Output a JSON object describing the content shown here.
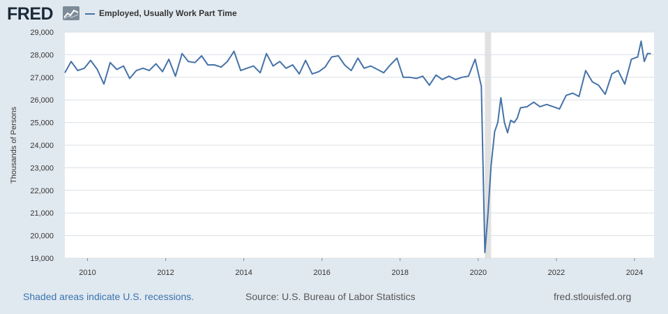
{
  "header": {
    "logo_text": "FRED",
    "logo_icon": "line-chart-icon",
    "series_label": "Employed, Usually Work Part Time"
  },
  "footer": {
    "recession_note": "Shaded areas indicate U.S. recessions.",
    "source": "Source: U.S. Bureau of Labor Statistics",
    "site": "fred.stlouisfed.org"
  },
  "colors": {
    "line": "#4572a7",
    "plot_bg": "#ffffff",
    "page_bg": "#e1e9f0",
    "recession": "#e1e1e1",
    "grid": "#d9dfe6"
  },
  "chart_data": {
    "type": "line",
    "xlabel": "",
    "ylabel": "Thousands of Persons",
    "xlim": [
      2009.42,
      2024.5
    ],
    "ylim": [
      19000,
      29000
    ],
    "x_ticks": [
      2010,
      2012,
      2014,
      2016,
      2018,
      2020,
      2022,
      2024
    ],
    "y_ticks": [
      19000,
      20000,
      21000,
      22000,
      23000,
      24000,
      25000,
      26000,
      27000,
      28000,
      29000
    ],
    "x_tick_labels": [
      "2010",
      "2012",
      "2014",
      "2016",
      "2018",
      "2020",
      "2022",
      "2024"
    ],
    "y_tick_labels": [
      "19,000",
      "20,000",
      "21,000",
      "22,000",
      "23,000",
      "24,000",
      "25,000",
      "26,000",
      "27,000",
      "28,000",
      "29,000"
    ],
    "grid": true,
    "legend": "top-left",
    "recessions": [
      [
        2020.17,
        2020.33
      ]
    ],
    "series": [
      {
        "name": "Employed, Usually Work Part Time",
        "x": [
          2009.42,
          2009.58,
          2009.75,
          2009.92,
          2010.08,
          2010.25,
          2010.42,
          2010.58,
          2010.75,
          2010.92,
          2011.08,
          2011.25,
          2011.42,
          2011.58,
          2011.75,
          2011.92,
          2012.08,
          2012.25,
          2012.42,
          2012.58,
          2012.75,
          2012.92,
          2013.08,
          2013.25,
          2013.42,
          2013.58,
          2013.75,
          2013.92,
          2014.08,
          2014.25,
          2014.42,
          2014.58,
          2014.75,
          2014.92,
          2015.08,
          2015.25,
          2015.42,
          2015.58,
          2015.75,
          2015.92,
          2016.08,
          2016.25,
          2016.42,
          2016.58,
          2016.75,
          2016.92,
          2017.08,
          2017.25,
          2017.42,
          2017.58,
          2017.75,
          2017.92,
          2018.08,
          2018.25,
          2018.42,
          2018.58,
          2018.75,
          2018.92,
          2019.08,
          2019.25,
          2019.42,
          2019.58,
          2019.75,
          2019.92,
          2020.08,
          2020.17,
          2020.25,
          2020.33,
          2020.42,
          2020.5,
          2020.58,
          2020.67,
          2020.75,
          2020.83,
          2020.92,
          2021.0,
          2021.08,
          2021.25,
          2021.42,
          2021.58,
          2021.75,
          2021.92,
          2022.08,
          2022.25,
          2022.42,
          2022.58,
          2022.75,
          2022.92,
          2023.08,
          2023.25,
          2023.42,
          2023.58,
          2023.75,
          2023.92,
          2024.08,
          2024.17,
          2024.25,
          2024.33,
          2024.42
        ],
        "values": [
          27200,
          27700,
          27300,
          27400,
          27750,
          27350,
          26700,
          27650,
          27350,
          27500,
          26950,
          27300,
          27400,
          27300,
          27600,
          27250,
          27800,
          27050,
          28050,
          27700,
          27650,
          27950,
          27550,
          27550,
          27450,
          27700,
          28150,
          27300,
          27400,
          27500,
          27200,
          28050,
          27500,
          27700,
          27400,
          27550,
          27150,
          27750,
          27150,
          27250,
          27450,
          27900,
          27950,
          27550,
          27300,
          27850,
          27400,
          27500,
          27350,
          27200,
          27550,
          27850,
          27000,
          27000,
          26950,
          27050,
          26650,
          27100,
          26900,
          27050,
          26900,
          27000,
          27050,
          27800,
          26600,
          19250,
          21000,
          23100,
          24600,
          25000,
          26100,
          25000,
          24550,
          25100,
          25000,
          25200,
          25650,
          25700,
          25900,
          25700,
          25800,
          25700,
          25600,
          26200,
          26300,
          26150,
          27300,
          26800,
          26650,
          26250,
          27150,
          27300,
          26700,
          27800,
          27900,
          28600,
          27700,
          28050,
          28050
        ]
      }
    ]
  }
}
